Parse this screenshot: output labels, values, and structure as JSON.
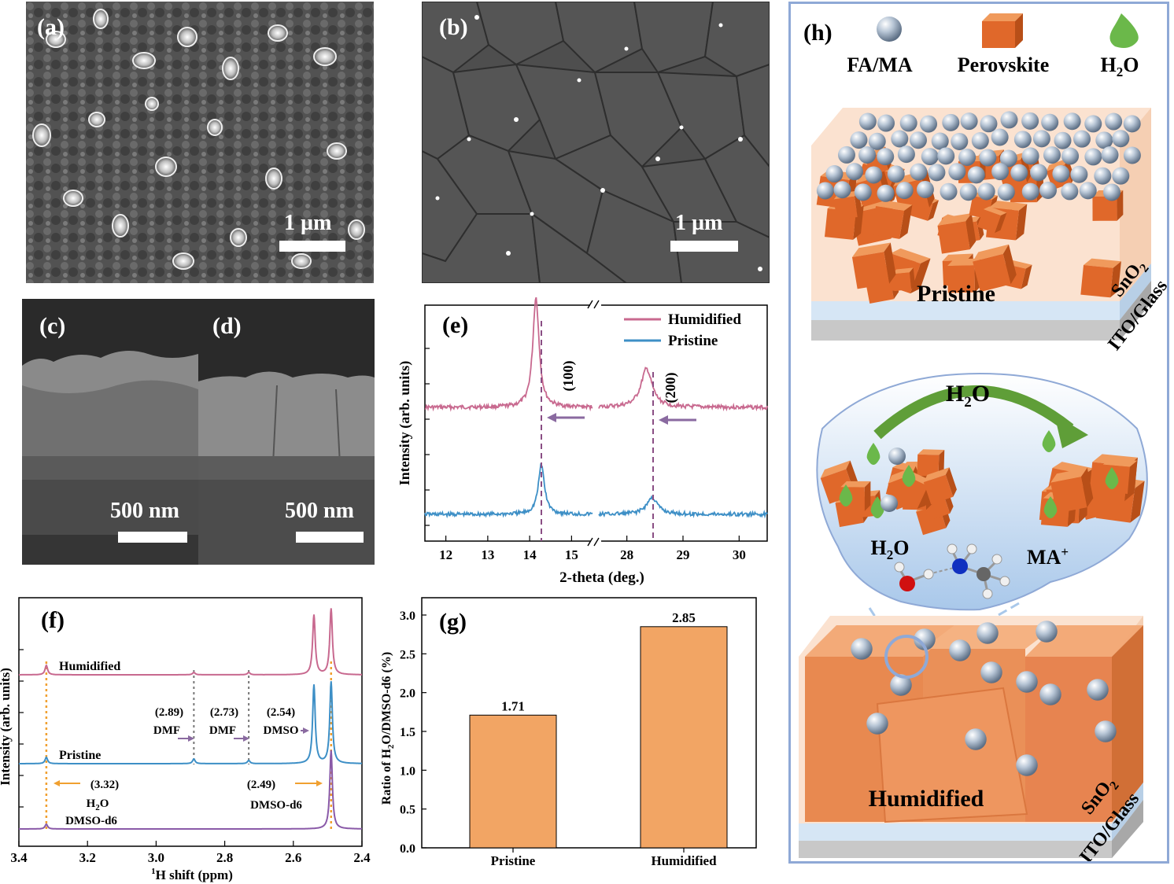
{
  "panels": {
    "a": {
      "label": "(a)",
      "scale": "1 µm"
    },
    "b": {
      "label": "(b)",
      "scale": "1 µm"
    },
    "c": {
      "label": "(c)",
      "scale": "500 nm"
    },
    "d": {
      "label": "(d)",
      "scale": "500 nm"
    },
    "e": {
      "label": "(e)"
    },
    "f": {
      "label": "(f)"
    },
    "g": {
      "label": "(g)"
    },
    "h": {
      "label": "(h)"
    }
  },
  "xrd": {
    "ylabel": "Intensity (arb. units)",
    "xlabel": "2-theta (deg.)",
    "legend": [
      {
        "name": "Humidified",
        "color": "#c8698f"
      },
      {
        "name": "Pristine",
        "color": "#3d8fc6"
      }
    ],
    "peak_labels": [
      "(100)",
      "(200)"
    ],
    "ticks_left": [
      "12",
      "13",
      "14",
      "15"
    ],
    "ticks_right": [
      "28",
      "29",
      "30"
    ]
  },
  "nmr": {
    "ylabel": "Intensity (arb. units)",
    "xlabel_pre": "1",
    "xlabel": "H shift (ppm)",
    "ticks": [
      "3.4",
      "3.2",
      "3.0",
      "2.8",
      "2.6",
      "2.4"
    ],
    "traces": [
      {
        "name": "Humidified",
        "color": "#c8698f"
      },
      {
        "name": "Pristine",
        "color": "#3d8fc6"
      },
      {
        "name": "",
        "color": "#8a5aa8"
      }
    ],
    "annotations": {
      "dmf1_val": "(2.89)",
      "dmf1": "DMF",
      "dmf2_val": "(2.73)",
      "dmf2": "DMF",
      "dmso_val": "(2.54)",
      "dmso": "DMSO",
      "h2o_val": "(3.32)",
      "h2o": "H",
      "h2o_sub": "2",
      "h2o_post": "O",
      "h2o_solvent": "DMSO-d6",
      "dmsod6_val": "(2.49)",
      "dmsod6": "DMSO-d6"
    }
  },
  "chart_data": [
    {
      "type": "line",
      "title": "",
      "xlabel": "2-theta (deg.)",
      "ylabel": "Intensity (arb. units)",
      "xlim": [
        [
          11.5,
          15.5
        ],
        [
          27.5,
          30.5
        ]
      ],
      "series": [
        {
          "name": "Humidified",
          "peaks": [
            {
              "x": 14.15,
              "y": 1.0
            },
            {
              "x": 28.35,
              "y": 0.35
            }
          ]
        },
        {
          "name": "Pristine",
          "peaks": [
            {
              "x": 14.28,
              "y": 0.45
            },
            {
              "x": 28.45,
              "y": 0.15
            }
          ]
        }
      ],
      "annotations": [
        "(100)",
        "(200)"
      ]
    },
    {
      "type": "line",
      "xlabel": "1H shift (ppm)",
      "ylabel": "Intensity (arb. units)",
      "xlim": [
        3.4,
        2.4
      ],
      "series": [
        {
          "name": "Humidified",
          "peaks": [
            3.32,
            2.89,
            2.73,
            2.54,
            2.49
          ]
        },
        {
          "name": "Pristine",
          "peaks": [
            3.32,
            2.89,
            2.73,
            2.54,
            2.49
          ]
        },
        {
          "name": "",
          "peaks": [
            3.32,
            2.49
          ]
        }
      ]
    },
    {
      "type": "bar",
      "categories": [
        "Pristine",
        "Humidified"
      ],
      "values": [
        1.71,
        2.85
      ],
      "value_labels": [
        "1.71",
        "2.85"
      ],
      "ylabel": "Ratio of H2O/DMSO-d6 (%)",
      "ylim": [
        0,
        3.0
      ],
      "yticks": [
        "0.0",
        "0.5",
        "1.0",
        "1.5",
        "2.0",
        "2.5",
        "3.0"
      ],
      "color": "#f2a564"
    }
  ],
  "gbar": {
    "ylabel_pre": "Ratio of H",
    "ylabel_sub": "2",
    "ylabel_post": "O/DMSO-d6 (%)"
  },
  "schematic": {
    "legend": [
      {
        "icon": "sphere-icon",
        "text": "FA/MA"
      },
      {
        "icon": "cube-icon",
        "text": "Perovskite"
      },
      {
        "icon": "droplet-icon",
        "text_pre": "H",
        "text_sub": "2",
        "text_post": "O"
      }
    ],
    "top_title": "Pristine",
    "bottom_title": "Humidified",
    "layer_sno2": "SnO",
    "layer_sno2_sub": "2",
    "layer_ito": "ITO/Glass",
    "bubble_h2o": "H",
    "bubble_h2o_sub": "2",
    "bubble_h2o_post": "O",
    "mol_h2o": "H",
    "mol_h2o_sub": "2",
    "mol_h2o_post": "O",
    "mol_ma": "MA",
    "mol_ma_sup": "+",
    "colors": {
      "cube": "#e0682a",
      "sphere": "#9fb2c6",
      "droplet": "#6bb84a",
      "bubble": "#cfe0f2",
      "border": "#8fa9d6"
    }
  }
}
